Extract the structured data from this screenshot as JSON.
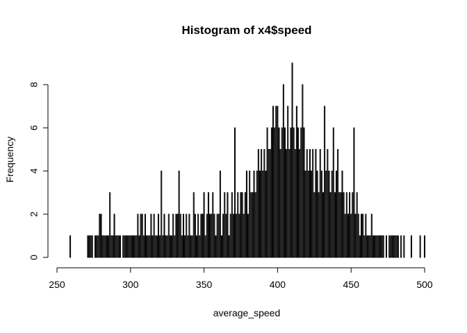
{
  "chart_data": {
    "type": "bar",
    "title": "Histogram of x4$speed",
    "xlabel": "average_speed",
    "ylabel": "Frequency",
    "xlim": [
      250,
      500
    ],
    "ylim": [
      0,
      8
    ],
    "x_ticks": [
      250,
      300,
      350,
      400,
      450,
      500
    ],
    "y_ticks": [
      0,
      2,
      4,
      6,
      8
    ],
    "grid": false,
    "legend": "none",
    "bar_color": "#000000",
    "axis_color": "#000000",
    "bin_width": 0.5,
    "bins": [
      [
        259,
        1
      ],
      [
        271,
        1
      ],
      [
        272,
        1
      ],
      [
        273,
        1
      ],
      [
        274,
        1
      ],
      [
        276,
        1
      ],
      [
        277,
        1
      ],
      [
        278,
        1
      ],
      [
        279,
        2
      ],
      [
        280,
        2
      ],
      [
        281,
        1
      ],
      [
        282,
        1
      ],
      [
        283,
        1
      ],
      [
        284,
        1
      ],
      [
        285,
        1
      ],
      [
        286,
        3
      ],
      [
        287,
        1
      ],
      [
        288,
        1
      ],
      [
        289,
        2
      ],
      [
        290,
        1
      ],
      [
        291,
        1
      ],
      [
        292,
        1
      ],
      [
        293,
        1
      ],
      [
        295,
        1
      ],
      [
        296,
        1
      ],
      [
        297,
        1
      ],
      [
        298,
        1
      ],
      [
        299,
        1
      ],
      [
        300,
        1
      ],
      [
        301,
        1
      ],
      [
        302,
        1
      ],
      [
        303,
        1
      ],
      [
        304,
        1
      ],
      [
        305,
        2
      ],
      [
        306,
        1
      ],
      [
        307,
        2
      ],
      [
        308,
        2
      ],
      [
        309,
        1
      ],
      [
        310,
        2
      ],
      [
        311,
        1
      ],
      [
        312,
        1
      ],
      [
        313,
        1
      ],
      [
        314,
        2
      ],
      [
        315,
        1
      ],
      [
        316,
        2
      ],
      [
        317,
        1
      ],
      [
        318,
        1
      ],
      [
        319,
        2
      ],
      [
        320,
        1
      ],
      [
        321,
        4
      ],
      [
        322,
        1
      ],
      [
        323,
        2
      ],
      [
        324,
        1
      ],
      [
        325,
        1
      ],
      [
        326,
        2
      ],
      [
        327,
        1
      ],
      [
        328,
        1
      ],
      [
        329,
        2
      ],
      [
        330,
        1
      ],
      [
        331,
        2
      ],
      [
        332,
        2
      ],
      [
        333,
        4
      ],
      [
        334,
        2
      ],
      [
        335,
        1
      ],
      [
        336,
        2
      ],
      [
        337,
        1
      ],
      [
        338,
        2
      ],
      [
        339,
        1
      ],
      [
        340,
        2
      ],
      [
        341,
        1
      ],
      [
        342,
        1
      ],
      [
        343,
        3
      ],
      [
        344,
        2
      ],
      [
        345,
        1
      ],
      [
        346,
        2
      ],
      [
        347,
        1
      ],
      [
        348,
        2
      ],
      [
        349,
        2
      ],
      [
        350,
        3
      ],
      [
        351,
        1
      ],
      [
        352,
        2
      ],
      [
        353,
        3
      ],
      [
        354,
        2
      ],
      [
        355,
        2
      ],
      [
        356,
        3
      ],
      [
        357,
        2
      ],
      [
        358,
        1
      ],
      [
        359,
        2
      ],
      [
        360,
        2
      ],
      [
        361,
        4
      ],
      [
        362,
        1
      ],
      [
        363,
        2
      ],
      [
        364,
        3
      ],
      [
        365,
        2
      ],
      [
        366,
        3
      ],
      [
        367,
        1
      ],
      [
        368,
        2
      ],
      [
        369,
        3
      ],
      [
        370,
        2
      ],
      [
        371,
        6
      ],
      [
        372,
        2
      ],
      [
        373,
        3
      ],
      [
        374,
        2
      ],
      [
        375,
        3
      ],
      [
        376,
        3
      ],
      [
        377,
        2
      ],
      [
        378,
        3
      ],
      [
        379,
        4
      ],
      [
        380,
        2
      ],
      [
        381,
        4
      ],
      [
        382,
        3
      ],
      [
        383,
        3
      ],
      [
        384,
        4
      ],
      [
        385,
        3
      ],
      [
        386,
        4
      ],
      [
        387,
        5
      ],
      [
        388,
        4
      ],
      [
        389,
        5
      ],
      [
        390,
        4
      ],
      [
        391,
        5
      ],
      [
        392,
        4
      ],
      [
        393,
        6
      ],
      [
        394,
        5
      ],
      [
        395,
        5
      ],
      [
        396,
        6
      ],
      [
        397,
        7
      ],
      [
        398,
        6
      ],
      [
        399,
        7
      ],
      [
        400,
        7
      ],
      [
        401,
        6
      ],
      [
        402,
        5
      ],
      [
        403,
        6
      ],
      [
        404,
        8
      ],
      [
        405,
        6
      ],
      [
        406,
        5
      ],
      [
        407,
        7
      ],
      [
        408,
        5
      ],
      [
        409,
        6
      ],
      [
        410,
        9
      ],
      [
        411,
        6
      ],
      [
        412,
        5
      ],
      [
        413,
        7
      ],
      [
        414,
        6
      ],
      [
        415,
        5
      ],
      [
        416,
        6
      ],
      [
        417,
        8
      ],
      [
        418,
        6
      ],
      [
        419,
        4
      ],
      [
        420,
        5
      ],
      [
        421,
        4
      ],
      [
        422,
        5
      ],
      [
        423,
        4
      ],
      [
        424,
        5
      ],
      [
        425,
        3
      ],
      [
        426,
        5
      ],
      [
        427,
        4
      ],
      [
        428,
        3
      ],
      [
        429,
        5
      ],
      [
        430,
        4
      ],
      [
        431,
        3
      ],
      [
        432,
        7
      ],
      [
        433,
        4
      ],
      [
        434,
        5
      ],
      [
        435,
        4
      ],
      [
        436,
        3
      ],
      [
        437,
        4
      ],
      [
        438,
        6
      ],
      [
        439,
        3
      ],
      [
        440,
        4
      ],
      [
        441,
        5
      ],
      [
        442,
        3
      ],
      [
        443,
        3
      ],
      [
        444,
        4
      ],
      [
        445,
        3
      ],
      [
        446,
        2
      ],
      [
        447,
        3
      ],
      [
        448,
        2
      ],
      [
        449,
        3
      ],
      [
        450,
        2
      ],
      [
        451,
        3
      ],
      [
        452,
        6
      ],
      [
        453,
        2
      ],
      [
        454,
        3
      ],
      [
        455,
        2
      ],
      [
        456,
        1
      ],
      [
        457,
        2
      ],
      [
        458,
        2
      ],
      [
        459,
        1
      ],
      [
        460,
        2
      ],
      [
        461,
        1
      ],
      [
        462,
        1
      ],
      [
        463,
        1
      ],
      [
        464,
        2
      ],
      [
        465,
        1
      ],
      [
        466,
        1
      ],
      [
        467,
        1
      ],
      [
        468,
        1
      ],
      [
        469,
        1
      ],
      [
        470,
        1
      ],
      [
        471,
        1
      ],
      [
        472,
        1
      ],
      [
        474,
        1
      ],
      [
        476,
        1
      ],
      [
        477,
        1
      ],
      [
        478,
        1
      ],
      [
        479,
        1
      ],
      [
        480,
        1
      ],
      [
        481,
        1
      ],
      [
        482,
        1
      ],
      [
        484,
        1
      ],
      [
        486,
        1
      ],
      [
        491,
        1
      ],
      [
        497,
        1
      ],
      [
        500,
        1
      ]
    ]
  }
}
